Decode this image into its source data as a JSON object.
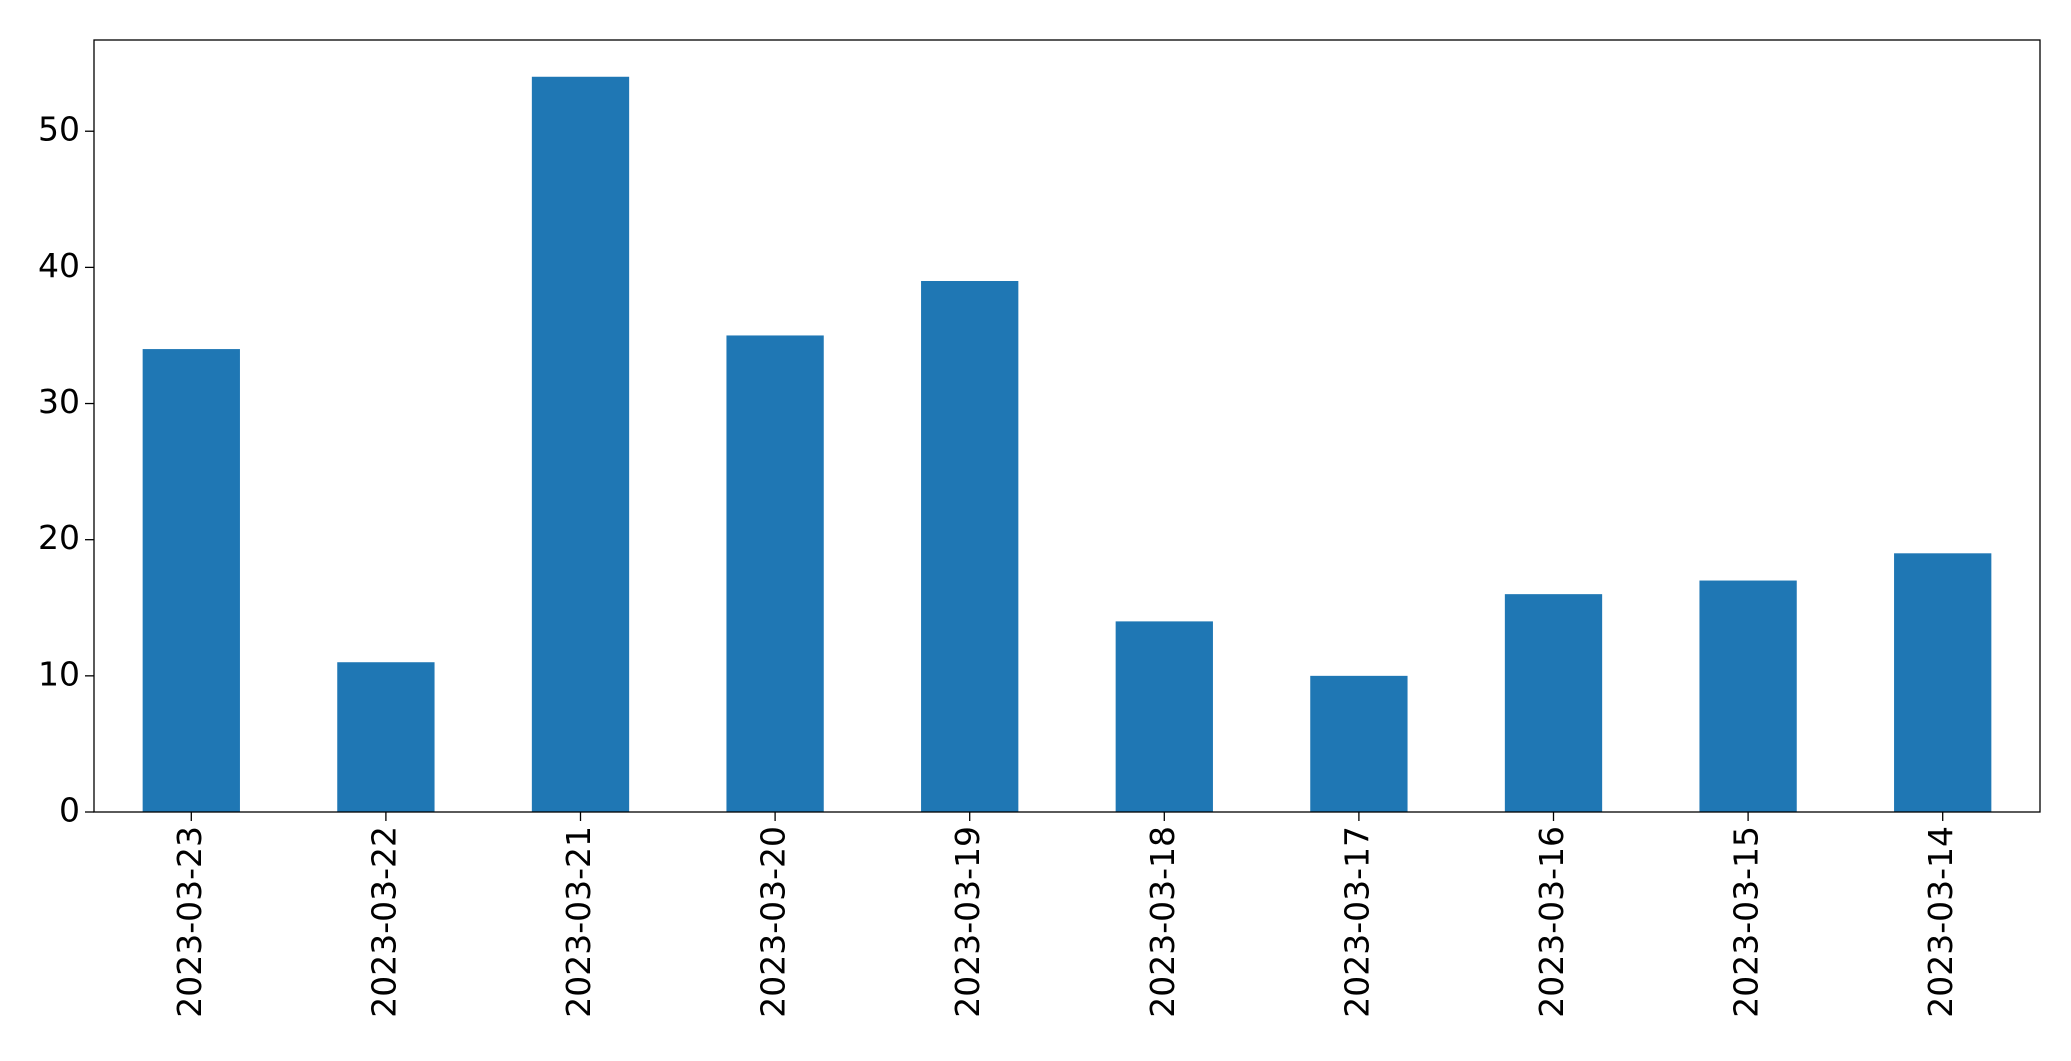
{
  "chart_data": {
    "type": "bar",
    "categories": [
      "2023-03-23",
      "2023-03-22",
      "2023-03-21",
      "2023-03-20",
      "2023-03-19",
      "2023-03-18",
      "2023-03-17",
      "2023-03-16",
      "2023-03-15",
      "2023-03-14"
    ],
    "values": [
      34,
      11,
      54,
      35,
      39,
      14,
      10,
      16,
      17,
      19
    ],
    "color": "#1f77b4",
    "ylim": [
      0,
      56.7
    ],
    "yticks": [
      0,
      10,
      20,
      30,
      40,
      50
    ],
    "grid": false
  }
}
